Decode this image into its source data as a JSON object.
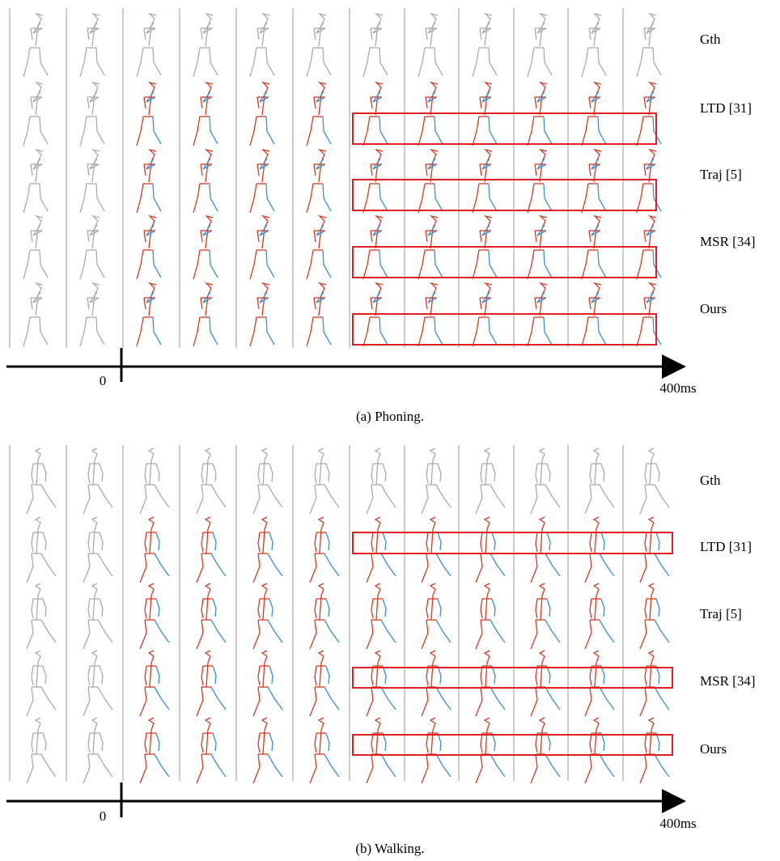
{
  "panels": [
    {
      "row_labels": [
        "Gth",
        "LTD [31]",
        "Traj [5]",
        "MSR [34]",
        "Ours"
      ],
      "axis_start": "0",
      "axis_end": "400ms",
      "caption": "(a)  Phoning."
    },
    {
      "row_labels": [
        "Gth",
        "LTD [31]",
        "Traj [5]",
        "MSR [34]",
        "Ours"
      ],
      "axis_start": "0",
      "axis_end": "400ms",
      "caption": "(b)  Walking."
    }
  ]
}
